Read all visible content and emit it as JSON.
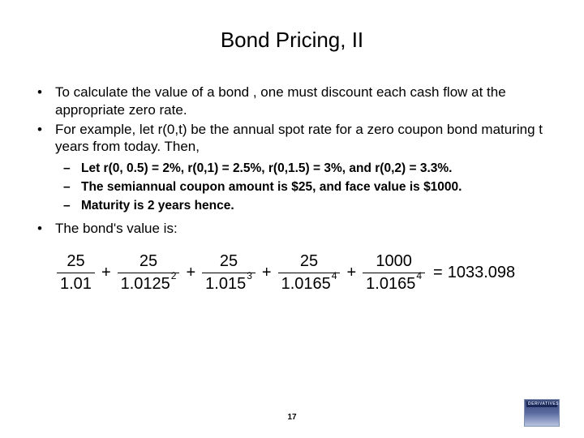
{
  "title": "Bond Pricing, II",
  "bullets": {
    "b1": "To calculate the value of a bond , one must discount each cash flow at the appropriate zero rate.",
    "b2": "For example, let r(0,t) be the annual spot rate for a zero coupon bond maturing t years from today. Then,",
    "b3": "The bond's value is:"
  },
  "sub": {
    "s1": "Let r(0, 0.5) = 2%, r(0,1) = 2.5%, r(0,1.5) = 3%, and r(0,2) = 3.3%.",
    "s2": "The semiannual coupon amount is $25, and face value is $1000.",
    "s3": "Maturity is 2 years hence."
  },
  "formula": {
    "terms": [
      {
        "num": "25",
        "den": "1.01",
        "exp": ""
      },
      {
        "num": "25",
        "den": "1.0125",
        "exp": "2"
      },
      {
        "num": "25",
        "den": "1.015",
        "exp": "3"
      },
      {
        "num": "25",
        "den": "1.0165",
        "exp": "4"
      },
      {
        "num": "1000",
        "den": "1.0165",
        "exp": "4"
      }
    ],
    "result": "1033.098",
    "font_size_pt": 20,
    "color": "#000000"
  },
  "pagenum": "17",
  "logo": {
    "label": "DERIVATIVES",
    "bg_top": "#3a4a7a",
    "bg_bottom": "#b8c4e0",
    "bar": "#1a2858"
  },
  "colors": {
    "background": "#ffffff",
    "text": "#000000"
  },
  "fonts": {
    "title_size_pt": 26,
    "body_size_pt": 17,
    "sub_size_pt": 15.5,
    "sub_weight": 700
  }
}
